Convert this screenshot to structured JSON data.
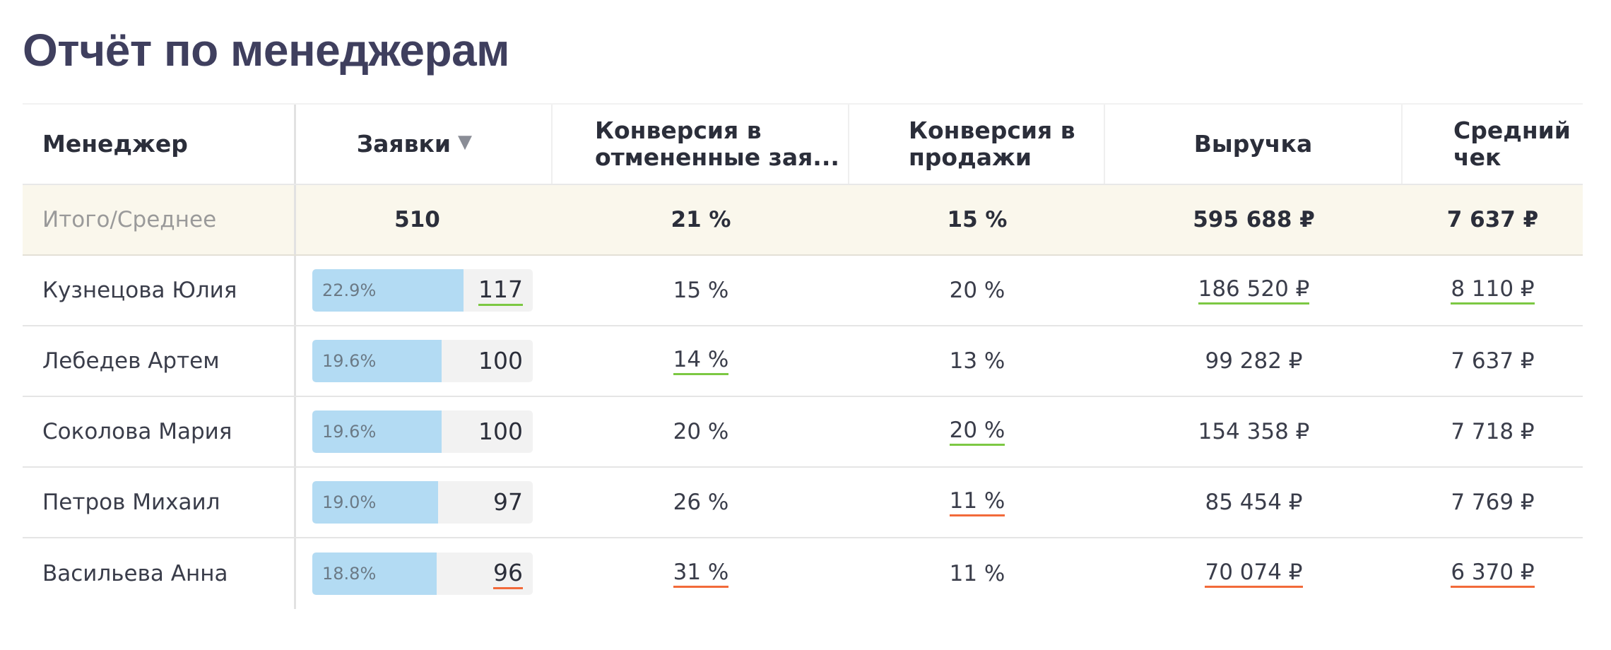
{
  "title": "Отчёт по менеджерам",
  "columns": {
    "manager": "Менеджер",
    "requests": "Заявки",
    "cancel_conversion": "Конверсия в\nотмененные зая...",
    "sales_conversion": "Конверсия в\nпродажи",
    "revenue": "Выручка",
    "avg_check": "Средний\nчек"
  },
  "sort_icon": "triangle-down-icon",
  "total": {
    "label": "Итого/Среднее",
    "requests": "510",
    "cancel_conversion": "21 %",
    "sales_conversion": "15 %",
    "revenue": "595 688 ₽",
    "avg_check": "7 637 ₽"
  },
  "rows": [
    {
      "name": "Кузнецова Юлия",
      "share": "22.9%",
      "share_value": 22.9,
      "requests": "117",
      "requests_mark": "green",
      "cancel": "15 %",
      "cancel_mark": "",
      "sales": "20 %",
      "sales_mark": "",
      "revenue": "186 520 ₽",
      "revenue_mark": "green",
      "avg": "8 110 ₽",
      "avg_mark": "green"
    },
    {
      "name": "Лебедев Артем",
      "share": "19.6%",
      "share_value": 19.6,
      "requests": "100",
      "requests_mark": "",
      "cancel": "14 %",
      "cancel_mark": "green",
      "sales": "13 %",
      "sales_mark": "",
      "revenue": "99 282 ₽",
      "revenue_mark": "",
      "avg": "7 637 ₽",
      "avg_mark": ""
    },
    {
      "name": "Соколова Мария",
      "share": "19.6%",
      "share_value": 19.6,
      "requests": "100",
      "requests_mark": "",
      "cancel": "20 %",
      "cancel_mark": "",
      "sales": "20 %",
      "sales_mark": "green",
      "revenue": "154 358 ₽",
      "revenue_mark": "",
      "avg": "7 718 ₽",
      "avg_mark": ""
    },
    {
      "name": "Петров Михаил",
      "share": "19.0%",
      "share_value": 19.0,
      "requests": "97",
      "requests_mark": "",
      "cancel": "26 %",
      "cancel_mark": "",
      "sales": "11 %",
      "sales_mark": "red",
      "revenue": "85 454 ₽",
      "revenue_mark": "",
      "avg": "7 769 ₽",
      "avg_mark": ""
    },
    {
      "name": "Васильева Анна",
      "share": "18.8%",
      "share_value": 18.8,
      "requests": "96",
      "requests_mark": "red",
      "cancel": "31 %",
      "cancel_mark": "red",
      "sales": "11 %",
      "sales_mark": "",
      "revenue": "70 074 ₽",
      "revenue_mark": "red",
      "avg": "6 370 ₽",
      "avg_mark": "red"
    }
  ],
  "colors": {
    "bar_fill": "#b3dbf3",
    "good_underline": "#7cc843",
    "bad_underline": "#f26a3a",
    "total_row_bg": "#faf7ec"
  }
}
